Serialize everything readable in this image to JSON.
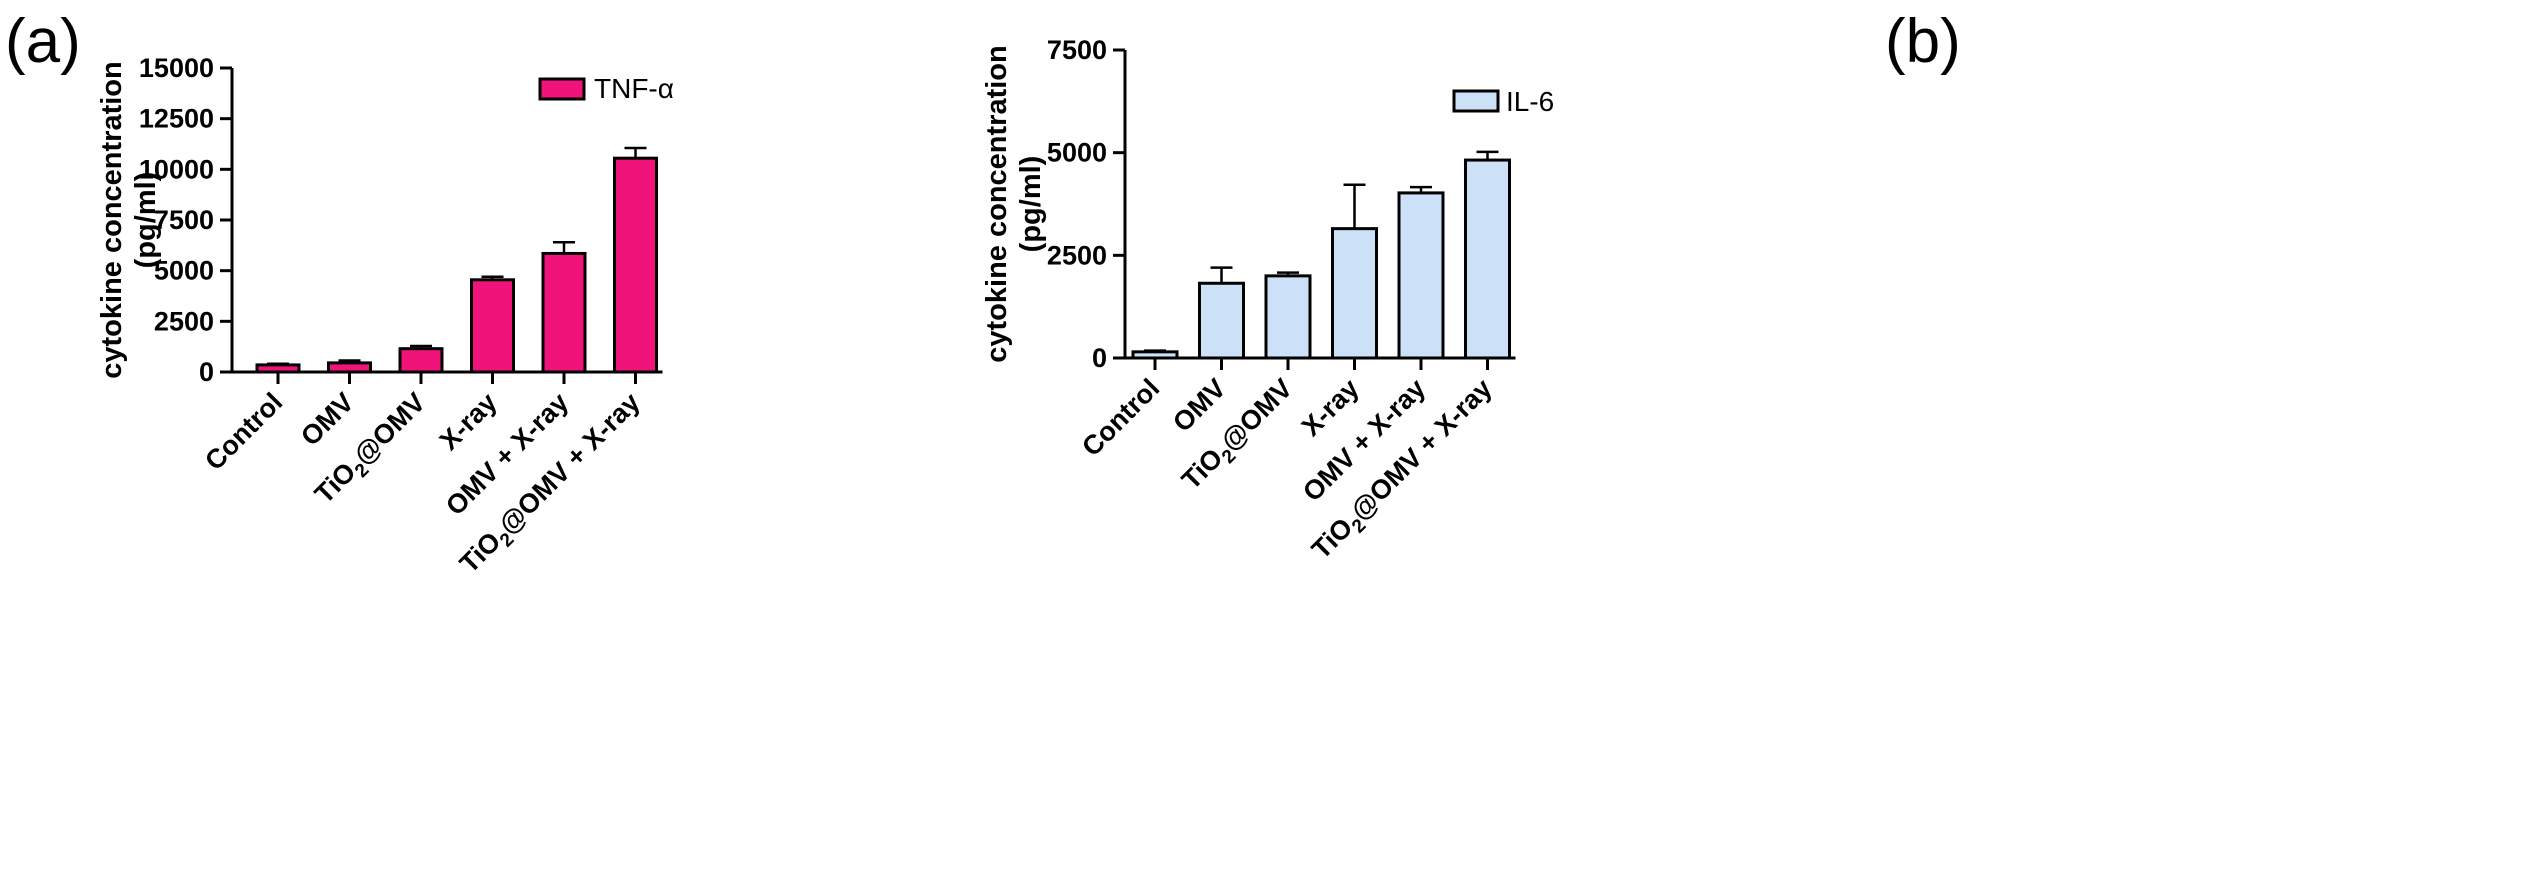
{
  "chart_data": [
    {
      "type": "bar",
      "panel": "(a)",
      "title": "",
      "xlabel": "",
      "ylabel": [
        "cytokine concentration",
        "(pg/ml)"
      ],
      "ylim": [
        0,
        15000
      ],
      "yticks": [
        0,
        2500,
        5000,
        7500,
        10000,
        12500,
        15000
      ],
      "categories": [
        {
          "main": "Control"
        },
        {
          "main": "OMV"
        },
        {
          "pre": "TiO",
          "sub": "2",
          "post": "@OMV"
        },
        {
          "main": "X-ray"
        },
        {
          "main": "OMV + X-ray"
        },
        {
          "pre": "TiO",
          "sub": "2",
          "post": "@OMV + X-ray"
        }
      ],
      "series": [
        {
          "name": "TNF-α",
          "color": "#F0147A",
          "values": [
            350,
            450,
            1150,
            4550,
            5850,
            10550
          ],
          "errors": [
            60,
            120,
            130,
            150,
            550,
            500
          ]
        }
      ]
    },
    {
      "type": "bar",
      "panel": "(b)",
      "title": "",
      "xlabel": "",
      "ylabel": [
        "cytokine concentration",
        "(pg/ml)"
      ],
      "ylim": [
        0,
        7500
      ],
      "yticks": [
        0,
        2500,
        5000,
        7500
      ],
      "categories": [
        {
          "main": "Control"
        },
        {
          "main": "OMV"
        },
        {
          "pre": "TiO",
          "sub": "2",
          "post": "@OMV"
        },
        {
          "main": "X-ray"
        },
        {
          "main": "OMV + X-ray"
        },
        {
          "pre": "TiO",
          "sub": "2",
          "post": "@OMV + X-ray"
        }
      ],
      "series": [
        {
          "name": "IL-6",
          "color": "#CCE0F8",
          "values": [
            150,
            1820,
            2000,
            3150,
            4020,
            4820
          ],
          "errors": [
            30,
            380,
            80,
            1070,
            140,
            200
          ]
        }
      ]
    }
  ]
}
